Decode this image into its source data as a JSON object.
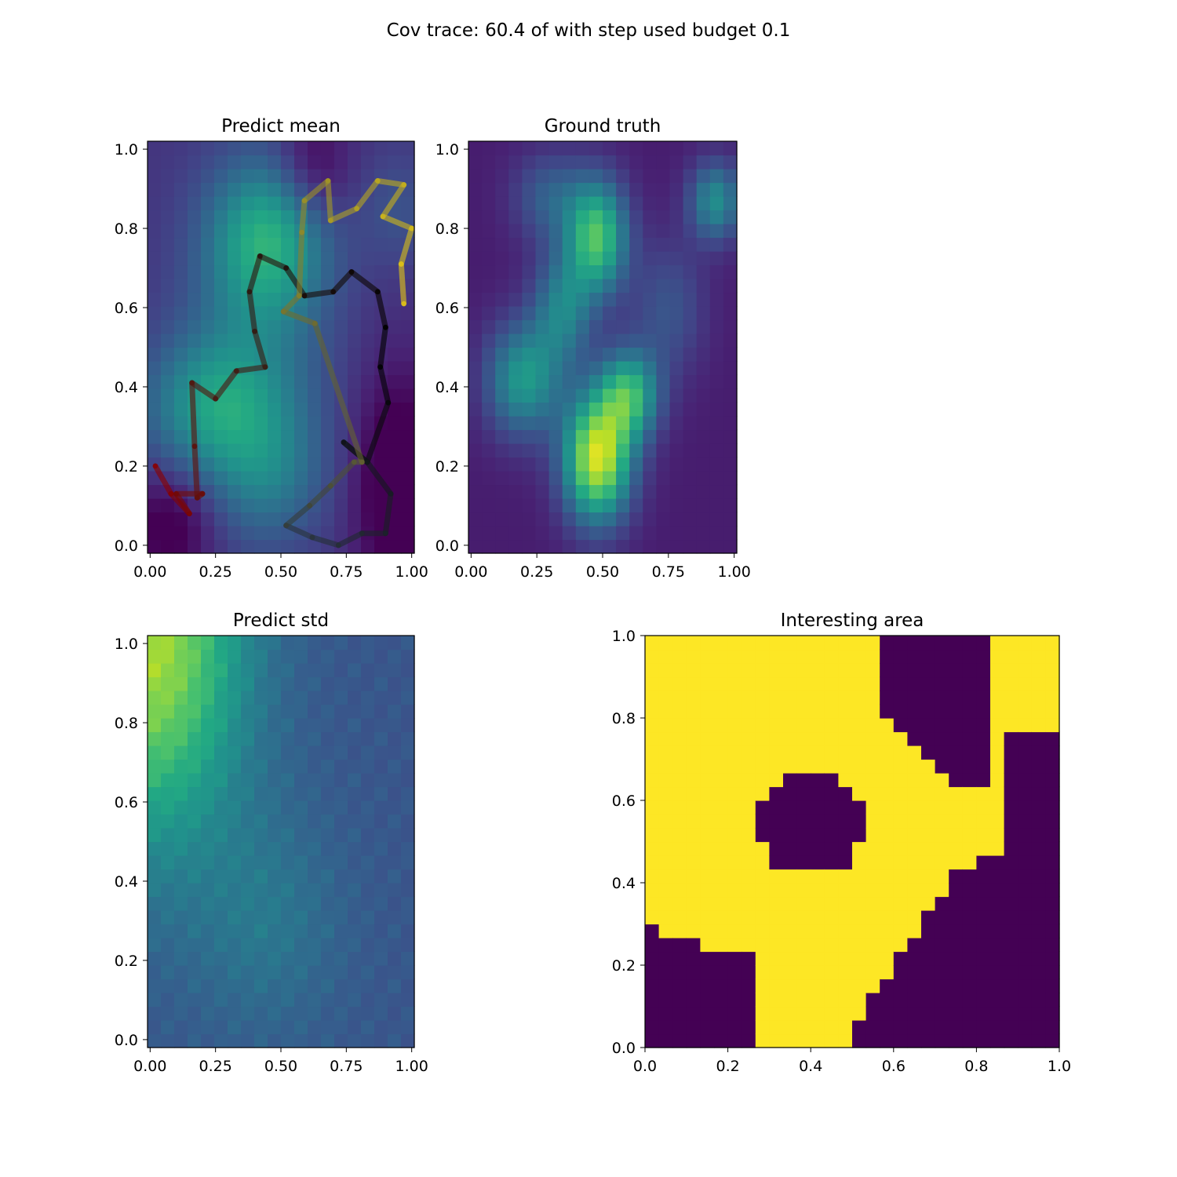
{
  "figure": {
    "suptitle": "Cov trace: 60.4 of with step used budget 0.1"
  },
  "chart_data": [
    {
      "id": "mean",
      "type": "heatmap",
      "title": "Predict mean",
      "colormap": "viridis",
      "xlim": [
        -0.01,
        1.01
      ],
      "ylim": [
        -0.02,
        1.02
      ],
      "xticks": [
        "0.00",
        "0.25",
        "0.50",
        "0.75",
        "1.00"
      ],
      "yticks": [
        "0.0",
        "0.2",
        "0.4",
        "0.6",
        "0.8",
        "1.0"
      ],
      "grid": false,
      "path": [
        [
          0.02,
          0.2
        ],
        [
          0.08,
          0.13
        ],
        [
          0.15,
          0.08
        ],
        [
          0.1,
          0.13
        ],
        [
          0.2,
          0.13
        ],
        [
          0.18,
          0.12
        ],
        [
          0.17,
          0.25
        ],
        [
          0.16,
          0.41
        ],
        [
          0.25,
          0.37
        ],
        [
          0.33,
          0.44
        ],
        [
          0.44,
          0.45
        ],
        [
          0.4,
          0.54
        ],
        [
          0.38,
          0.64
        ],
        [
          0.42,
          0.73
        ],
        [
          0.52,
          0.7
        ],
        [
          0.59,
          0.63
        ],
        [
          0.7,
          0.64
        ],
        [
          0.77,
          0.69
        ],
        [
          0.87,
          0.64
        ],
        [
          0.9,
          0.55
        ],
        [
          0.88,
          0.45
        ],
        [
          0.91,
          0.36
        ],
        [
          0.83,
          0.21
        ],
        [
          0.74,
          0.26
        ],
        [
          0.83,
          0.21
        ],
        [
          0.92,
          0.13
        ],
        [
          0.9,
          0.03
        ],
        [
          0.81,
          0.03
        ],
        [
          0.72,
          0.0
        ],
        [
          0.62,
          0.02
        ],
        [
          0.52,
          0.05
        ],
        [
          0.61,
          0.1
        ],
        [
          0.69,
          0.15
        ],
        [
          0.78,
          0.21
        ],
        [
          0.81,
          0.21
        ],
        [
          0.63,
          0.56
        ],
        [
          0.51,
          0.59
        ],
        [
          0.57,
          0.63
        ],
        [
          0.58,
          0.79
        ],
        [
          0.59,
          0.87
        ],
        [
          0.68,
          0.92
        ],
        [
          0.69,
          0.82
        ],
        [
          0.79,
          0.85
        ],
        [
          0.87,
          0.92
        ],
        [
          0.97,
          0.91
        ],
        [
          0.89,
          0.83
        ],
        [
          1.0,
          0.8
        ],
        [
          0.96,
          0.71
        ],
        [
          0.97,
          0.61
        ]
      ]
    },
    {
      "id": "truth",
      "type": "heatmap",
      "title": "Ground truth",
      "colormap": "viridis",
      "xlim": [
        -0.01,
        1.01
      ],
      "ylim": [
        -0.02,
        1.02
      ],
      "xticks": [
        "0.00",
        "0.25",
        "0.50",
        "0.75",
        "1.00"
      ],
      "yticks": [
        "0.0",
        "0.2",
        "0.4",
        "0.6",
        "0.8",
        "1.0"
      ],
      "grid": false
    },
    {
      "id": "std",
      "type": "heatmap",
      "title": "Predict std",
      "colormap": "viridis",
      "xlim": [
        -0.01,
        1.01
      ],
      "ylim": [
        -0.02,
        1.02
      ],
      "xticks": [
        "0.00",
        "0.25",
        "0.50",
        "0.75",
        "1.00"
      ],
      "yticks": [
        "0.0",
        "0.2",
        "0.4",
        "0.6",
        "0.8",
        "1.0"
      ],
      "grid": false
    },
    {
      "id": "interest",
      "type": "heatmap",
      "title": "Interesting area",
      "colors": {
        "in": "#fde725",
        "out": "#440154"
      },
      "xlim": [
        0,
        1
      ],
      "ylim": [
        0,
        1
      ],
      "xticks": [
        "0.0",
        "0.2",
        "0.4",
        "0.6",
        "0.8",
        "1.0"
      ],
      "yticks": [
        "0.0",
        "0.2",
        "0.4",
        "0.6",
        "0.8",
        "1.0"
      ],
      "grid": false
    }
  ]
}
